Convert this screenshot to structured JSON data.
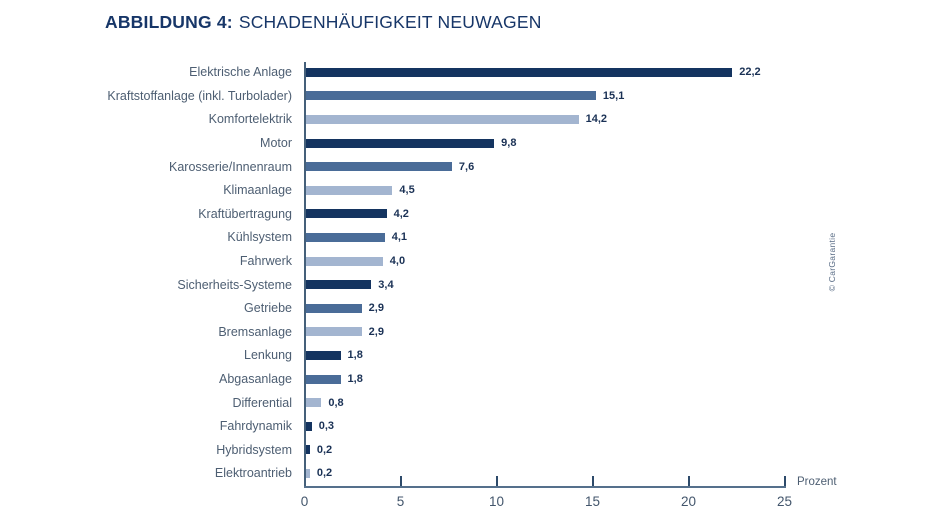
{
  "header": {
    "title_prefix": "ABBILDUNG 4:",
    "title_text": "SCHADENHÄUFIGKEIT NEUWAGEN"
  },
  "credit": "© CarGarantie",
  "colors": {
    "dark": "#143460",
    "medium": "#4a6c98",
    "light": "#a3b5d0",
    "title": "#173668",
    "axis": "#45607a"
  },
  "chart_data": {
    "type": "bar",
    "orientation": "horizontal",
    "title": "ABBILDUNG 4: SCHADENHÄUFIGKEIT NEUWAGEN",
    "xlabel": "Prozent",
    "ylabel": "",
    "xlim": [
      0,
      25
    ],
    "xticks": [
      0,
      5,
      10,
      15,
      20,
      25
    ],
    "grid": false,
    "legend": false,
    "categories": [
      "Elektrische Anlage",
      "Kraftstoffanlage (inkl. Turbolader)",
      "Komfortelektrik",
      "Motor",
      "Karosserie/Innenraum",
      "Klimaanlage",
      "Kraftübertragung",
      "Kühlsystem",
      "Fahrwerk",
      "Sicherheits-Systeme",
      "Getriebe",
      "Bremsanlage",
      "Lenkung",
      "Abgasanlage",
      "Differential",
      "Fahrdynamik",
      "Hybridsystem",
      "Elektroantrieb"
    ],
    "values": [
      22.2,
      15.1,
      14.2,
      9.8,
      7.6,
      4.5,
      4.2,
      4.1,
      4.0,
      3.4,
      2.9,
      2.9,
      1.8,
      1.8,
      0.8,
      0.3,
      0.2,
      0.2
    ],
    "value_labels": [
      "22,2",
      "15,1",
      "14,2",
      "9,8",
      "7,6",
      "4,5",
      "4,2",
      "4,1",
      "4,0",
      "3,4",
      "2,9",
      "2,9",
      "1,8",
      "1,8",
      "0,8",
      "0,3",
      "0,2",
      "0,2"
    ],
    "bar_colors": [
      "dark",
      "medium",
      "light",
      "dark",
      "medium",
      "light",
      "dark",
      "medium",
      "light",
      "dark",
      "medium",
      "light",
      "dark",
      "medium",
      "light",
      "dark",
      "dark",
      "light"
    ]
  }
}
